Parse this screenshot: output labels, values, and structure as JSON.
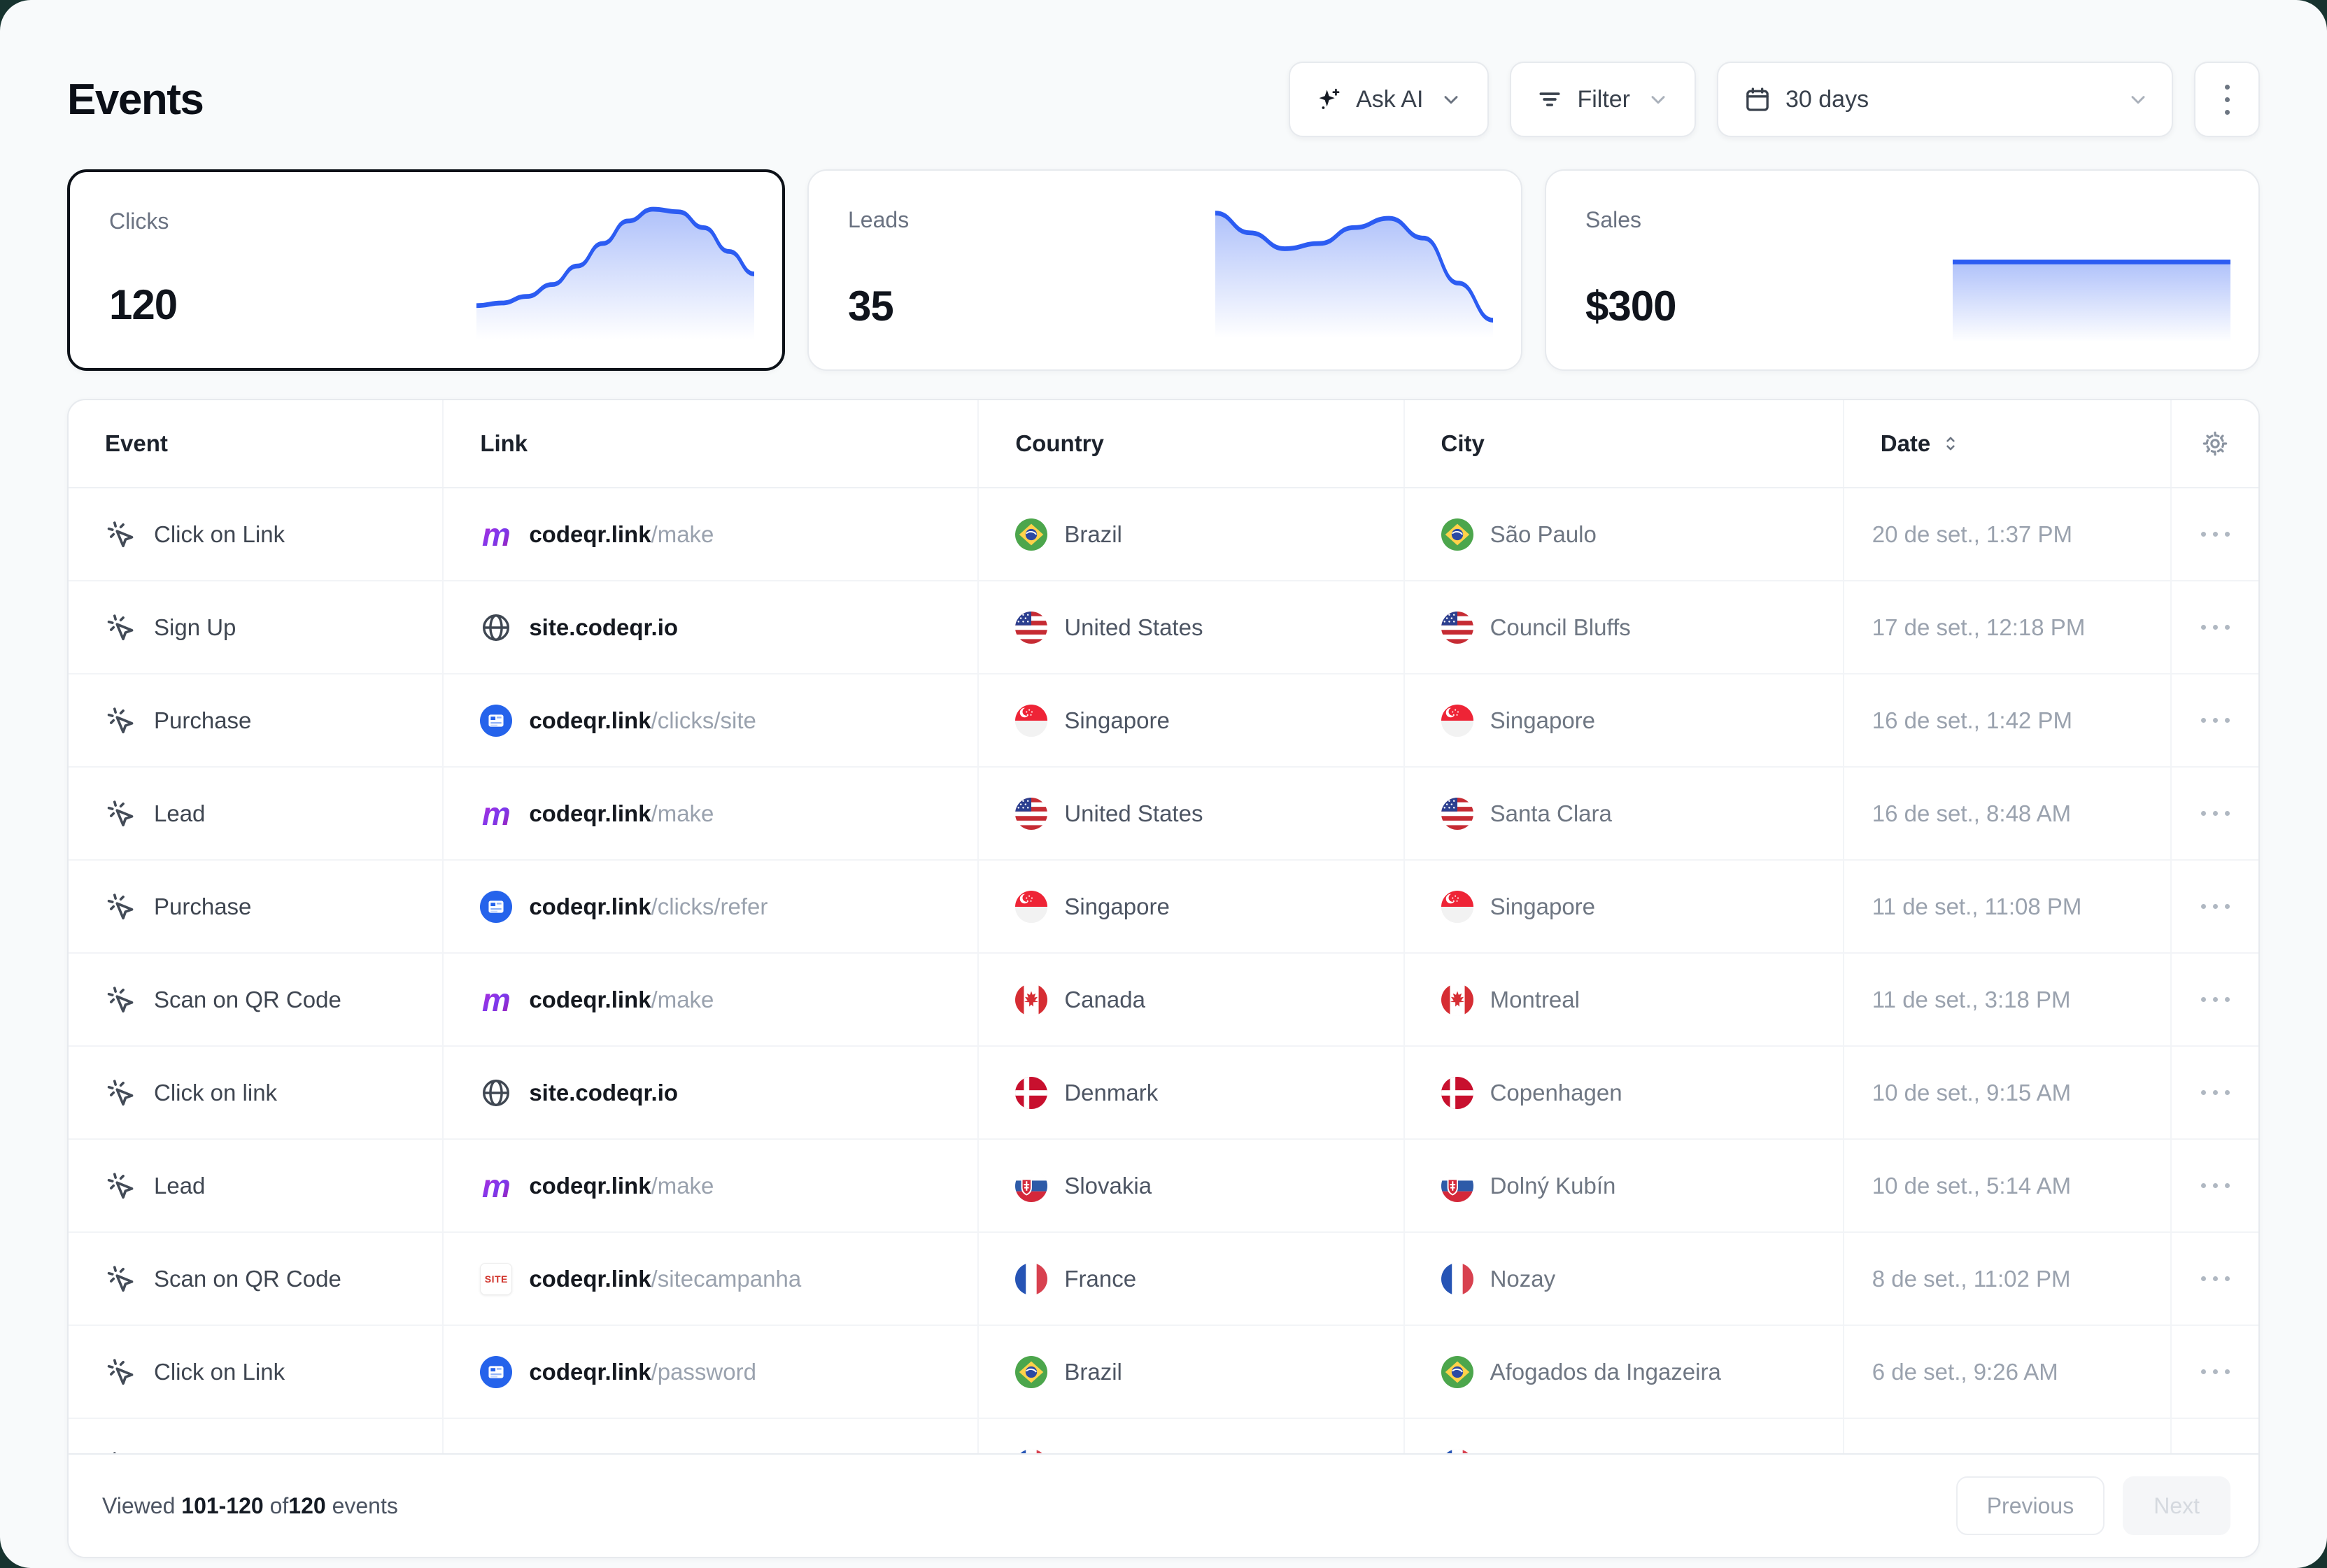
{
  "app": {
    "background_color": "#17332f",
    "surface_color": "#f8fafb",
    "accent_color": "#2c5cf2"
  },
  "header": {
    "title": "Events",
    "buttons": {
      "ask_ai": {
        "label": "Ask AI",
        "icon": "sparkles-icon"
      },
      "filter": {
        "label": "Filter",
        "icon": "filter-lines-icon"
      },
      "date_range": {
        "label": "30 days",
        "icon": "calendar-icon"
      },
      "more": {
        "icon": "kebab-menu-icon"
      }
    }
  },
  "metrics": [
    {
      "label": "Clicks",
      "value": "120",
      "selected": true
    },
    {
      "label": "Leads",
      "value": "35",
      "selected": false
    },
    {
      "label": "Sales",
      "value": "$300",
      "selected": false
    }
  ],
  "chart_data": [
    {
      "type": "area",
      "name": "Clicks sparkline",
      "values": [
        26,
        28,
        33,
        42,
        56,
        73,
        90,
        99,
        97,
        85,
        67,
        50
      ],
      "color": "#2c5cf2",
      "ylim": [
        0,
        100
      ]
    },
    {
      "type": "area",
      "name": "Leads sparkline",
      "values": [
        95,
        80,
        68,
        72,
        84,
        91,
        76,
        42,
        14
      ],
      "color": "#2c5cf2",
      "ylim": [
        0,
        100
      ]
    },
    {
      "type": "area",
      "name": "Sales sparkline",
      "values": [
        58,
        58,
        58,
        58,
        58,
        58
      ],
      "color": "#2c5cf2",
      "ylim": [
        0,
        100
      ]
    }
  ],
  "table": {
    "columns": [
      {
        "label": "Event"
      },
      {
        "label": "Link"
      },
      {
        "label": "Country"
      },
      {
        "label": "City"
      },
      {
        "label": "Date",
        "sort_icon": "chevrons-up-down-icon"
      }
    ],
    "settings_icon": "gear-icon",
    "row_event_icon": "mouse-pointer-click-icon",
    "rows": [
      {
        "event": "Click on Link",
        "link_icon": "make-logo",
        "link_domain": "codeqr.link",
        "link_path": "/make",
        "country": "Brazil",
        "country_flag": "br",
        "city": "São Paulo",
        "date": "20 de set., 1:37 PM"
      },
      {
        "event": "Sign Up",
        "link_icon": "globe-icon",
        "link_domain": "site.codeqr.io",
        "link_path": "",
        "country": "United States",
        "country_flag": "us",
        "city": "Council Bluffs",
        "date": "17 de set., 12:18 PM"
      },
      {
        "event": "Purchase",
        "link_icon": "codeqr-blue-icon",
        "link_domain": "codeqr.link",
        "link_path": "/clicks/site",
        "country": "Singapore",
        "country_flag": "sg",
        "city": "Singapore",
        "date": "16 de set., 1:42 PM"
      },
      {
        "event": "Lead",
        "link_icon": "make-logo",
        "link_domain": "codeqr.link",
        "link_path": "/make",
        "country": "United States",
        "country_flag": "us",
        "city": "Santa Clara",
        "date": "16 de set., 8:48 AM"
      },
      {
        "event": "Purchase",
        "link_icon": "codeqr-blue-icon",
        "link_domain": "codeqr.link",
        "link_path": "/clicks/refer",
        "country": "Singapore",
        "country_flag": "sg",
        "city": "Singapore",
        "date": "11 de set., 11:08 PM"
      },
      {
        "event": "Scan on QR Code",
        "link_icon": "make-logo",
        "link_domain": "codeqr.link",
        "link_path": "/make",
        "country": "Canada",
        "country_flag": "ca",
        "city": "Montreal",
        "date": "11 de set., 3:18 PM"
      },
      {
        "event": "Click on link",
        "link_icon": "globe-icon",
        "link_domain": "site.codeqr.io",
        "link_path": "",
        "country": "Denmark",
        "country_flag": "dk",
        "city": "Copenhagen",
        "date": "10 de set., 9:15 AM"
      },
      {
        "event": "Lead",
        "link_icon": "make-logo",
        "link_domain": "codeqr.link",
        "link_path": "/make",
        "country": "Slovakia",
        "country_flag": "sk",
        "city": "Dolný Kubín",
        "date": "10 de set., 5:14 AM"
      },
      {
        "event": "Scan on QR Code",
        "link_icon": "site-favicon",
        "link_domain": "codeqr.link",
        "link_path": "/sitecampanha",
        "country": "France",
        "country_flag": "fr",
        "city": "Nozay",
        "date": "8 de set., 11:02 PM"
      },
      {
        "event": "Click on Link",
        "link_icon": "codeqr-blue-icon",
        "link_domain": "codeqr.link",
        "link_path": "/password",
        "country": "Brazil",
        "country_flag": "br",
        "city": "Afogados da Ingazeira",
        "date": "6 de set., 9:26 AM"
      }
    ],
    "partial_row": {
      "country_flag": "fr",
      "city_flag": "fr"
    },
    "row_menu_icon": "ellipsis-icon"
  },
  "footer": {
    "viewed_label": "Viewed ",
    "range": "101-120",
    "of_label": " of",
    "total": "120",
    "events_label": " events",
    "previous": "Previous",
    "next": "Next"
  }
}
